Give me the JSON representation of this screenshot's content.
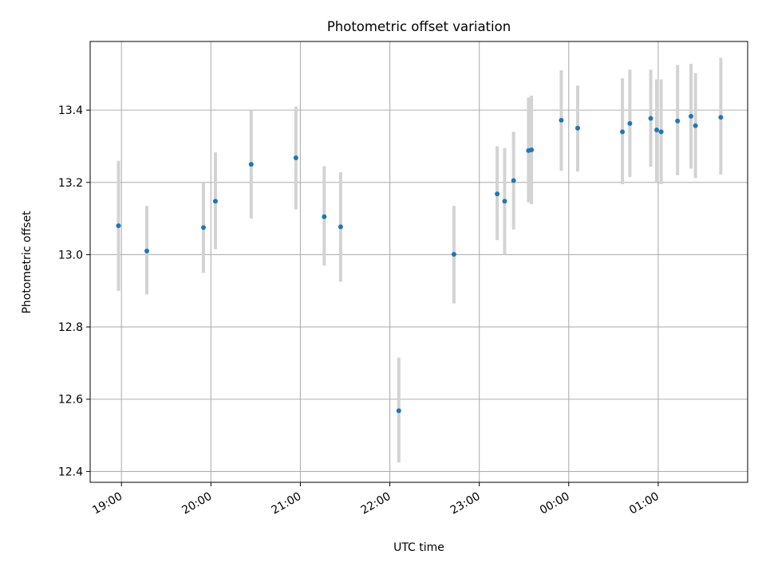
{
  "chart_data": {
    "type": "scatter",
    "title": "Photometric offset variation",
    "xlabel": "UTC time",
    "ylabel": "Photometric offset",
    "x_ticks": [
      "19:00",
      "20:00",
      "21:00",
      "22:00",
      "23:00",
      "00:00",
      "01:00"
    ],
    "y_ticks": [
      "12.4",
      "12.6",
      "12.8",
      "13.0",
      "13.2",
      "13.4"
    ],
    "xlim": [
      "18:39",
      "02:00"
    ],
    "ylim": [
      12.37,
      13.59
    ],
    "grid": true,
    "marker_color": "#1f77b4",
    "errorbar_color": "#d3d3d3",
    "points": [
      {
        "x": "18:58",
        "y": 13.08,
        "err_low": 12.9,
        "err_high": 13.26
      },
      {
        "x": "19:17",
        "y": 13.01,
        "err_low": 12.89,
        "err_high": 13.135
      },
      {
        "x": "19:55",
        "y": 13.075,
        "err_low": 12.95,
        "err_high": 13.2
      },
      {
        "x": "20:03",
        "y": 13.148,
        "err_low": 13.015,
        "err_high": 13.283
      },
      {
        "x": "20:27",
        "y": 13.25,
        "err_low": 13.1,
        "err_high": 13.4
      },
      {
        "x": "20:57",
        "y": 13.268,
        "err_low": 13.125,
        "err_high": 13.41
      },
      {
        "x": "21:16",
        "y": 13.105,
        "err_low": 12.97,
        "err_high": 13.245
      },
      {
        "x": "21:27",
        "y": 13.077,
        "err_low": 12.925,
        "err_high": 13.228
      },
      {
        "x": "22:06",
        "y": 12.568,
        "err_low": 12.425,
        "err_high": 12.715
      },
      {
        "x": "22:43",
        "y": 13.001,
        "err_low": 12.865,
        "err_high": 13.135
      },
      {
        "x": "23:12",
        "y": 13.168,
        "err_low": 13.04,
        "err_high": 13.3
      },
      {
        "x": "23:17",
        "y": 13.148,
        "err_low": 13.0,
        "err_high": 13.295
      },
      {
        "x": "23:23",
        "y": 13.205,
        "err_low": 13.07,
        "err_high": 13.34
      },
      {
        "x": "23:33",
        "y": 13.288,
        "err_low": 13.145,
        "err_high": 13.435
      },
      {
        "x": "23:35",
        "y": 13.29,
        "err_low": 13.14,
        "err_high": 13.44
      },
      {
        "x": "23:55",
        "y": 13.372,
        "err_low": 13.232,
        "err_high": 13.51
      },
      {
        "x": "00:06",
        "y": 13.35,
        "err_low": 13.23,
        "err_high": 13.468
      },
      {
        "x": "00:36",
        "y": 13.34,
        "err_low": 13.195,
        "err_high": 13.488
      },
      {
        "x": "00:41",
        "y": 13.363,
        "err_low": 13.215,
        "err_high": 13.512
      },
      {
        "x": "00:55",
        "y": 13.377,
        "err_low": 13.243,
        "err_high": 13.512
      },
      {
        "x": "00:59",
        "y": 13.345,
        "err_low": 13.2,
        "err_high": 13.485
      },
      {
        "x": "01:02",
        "y": 13.34,
        "err_low": 13.195,
        "err_high": 13.485
      },
      {
        "x": "01:13",
        "y": 13.37,
        "err_low": 13.22,
        "err_high": 13.525
      },
      {
        "x": "01:22",
        "y": 13.383,
        "err_low": 13.238,
        "err_high": 13.528
      },
      {
        "x": "01:25",
        "y": 13.357,
        "err_low": 13.212,
        "err_high": 13.502
      },
      {
        "x": "01:42",
        "y": 13.38,
        "err_low": 13.222,
        "err_high": 13.545
      }
    ]
  }
}
